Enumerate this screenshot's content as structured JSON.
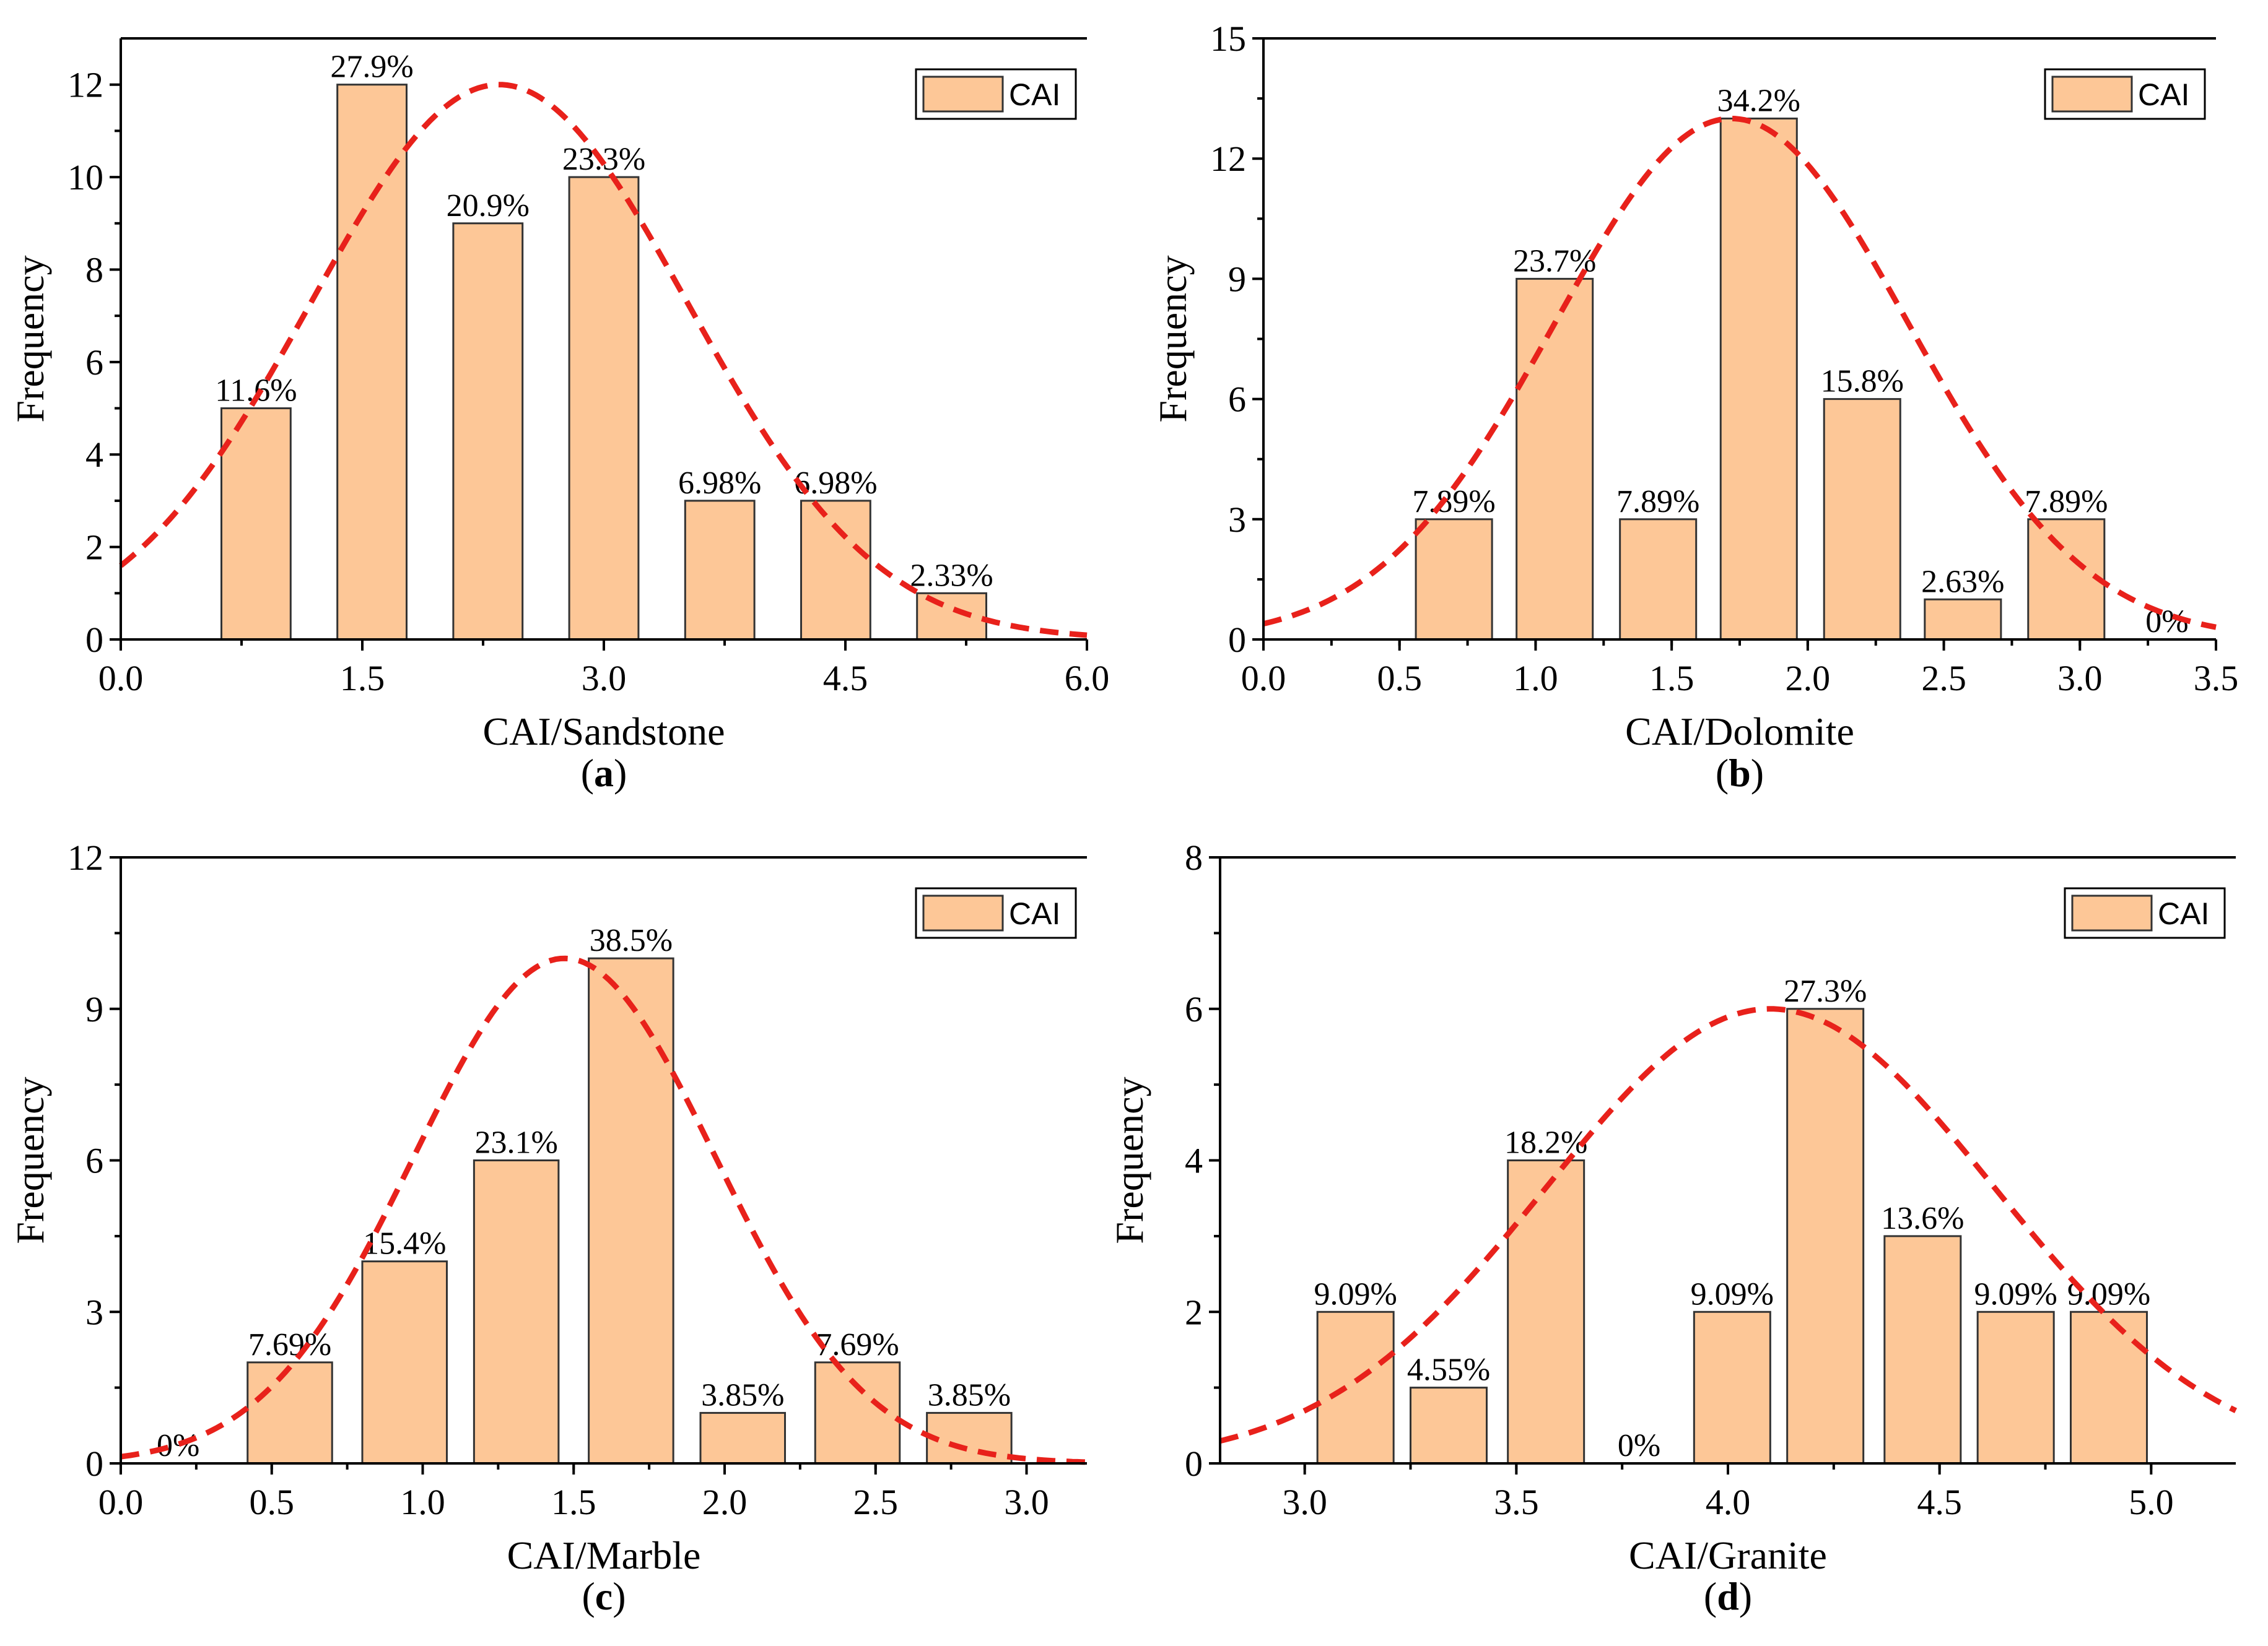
{
  "chart_data": [
    {
      "type": "bar",
      "panel": "a",
      "caption": {
        "open": "(",
        "letter": "a",
        "close": ")"
      },
      "xlabel": "CAI/Sandstone",
      "ylabel": "Frequency",
      "xlim": [
        0,
        6
      ],
      "ylim": [
        0,
        13
      ],
      "xticks": [
        0,
        1.5,
        3,
        4.5,
        6
      ],
      "xtick_labels": [
        "0.0",
        "1.5",
        "3.0",
        "4.5",
        "6.0"
      ],
      "yticks": [
        0,
        2,
        4,
        6,
        8,
        10,
        12
      ],
      "ytick_labels": [
        "0",
        "2",
        "4",
        "6",
        "8",
        "10",
        "12"
      ],
      "legend": "CAI",
      "legend_position": "top-right",
      "bar_width": 0.43,
      "bars": [
        {
          "x": 0.84,
          "value": 5,
          "label": "11.6%"
        },
        {
          "x": 1.56,
          "value": 12,
          "label": "27.9%"
        },
        {
          "x": 2.28,
          "value": 9,
          "label": "20.9%"
        },
        {
          "x": 3.0,
          "value": 10,
          "label": "23.3%"
        },
        {
          "x": 3.72,
          "value": 3,
          "label": "6.98%"
        },
        {
          "x": 4.44,
          "value": 3,
          "label": "6.98%"
        },
        {
          "x": 5.16,
          "value": 1,
          "label": "2.33%"
        }
      ],
      "fit": {
        "type": "normal",
        "peak": 12,
        "mean": 2.35,
        "sd": 1.17
      },
      "fit_color": "#E8211B",
      "bar_color": "#FDC797"
    },
    {
      "type": "bar",
      "panel": "b",
      "caption": {
        "open": "(",
        "letter": "b",
        "close": ")"
      },
      "xlabel": "CAI/Dolomite",
      "ylabel": "Frequency",
      "xlim": [
        0,
        3.5
      ],
      "ylim": [
        0,
        15
      ],
      "xticks": [
        0,
        0.5,
        1,
        1.5,
        2,
        2.5,
        3,
        3.5
      ],
      "xtick_labels": [
        "0.0",
        "0.5",
        "1.0",
        "1.5",
        "2.0",
        "2.5",
        "3.0",
        "3.5"
      ],
      "yticks": [
        0,
        3,
        6,
        9,
        12,
        15
      ],
      "ytick_labels": [
        "0",
        "3",
        "6",
        "9",
        "12",
        "15"
      ],
      "legend": "CAI",
      "legend_position": "top-right",
      "bar_width": 0.28,
      "bars": [
        {
          "x": 0.7,
          "value": 3,
          "label": "7.89%"
        },
        {
          "x": 1.07,
          "value": 9,
          "label": "23.7%"
        },
        {
          "x": 1.45,
          "value": 3,
          "label": "7.89%"
        },
        {
          "x": 1.82,
          "value": 13,
          "label": "34.2%"
        },
        {
          "x": 2.2,
          "value": 6,
          "label": "15.8%"
        },
        {
          "x": 2.57,
          "value": 1,
          "label": "2.63%"
        },
        {
          "x": 2.95,
          "value": 3,
          "label": "7.89%"
        },
        {
          "x": 3.32,
          "value": 0,
          "label": "0%"
        }
      ],
      "fit": {
        "type": "normal",
        "peak": 13,
        "mean": 1.72,
        "sd": 0.65
      },
      "fit_color": "#E8211B",
      "bar_color": "#FDC797"
    },
    {
      "type": "bar",
      "panel": "c",
      "caption": {
        "open": "(",
        "letter": "c",
        "close": ")"
      },
      "xlabel": "CAI/Marble",
      "ylabel": "Frequency",
      "xlim": [
        0,
        3.2
      ],
      "ylim": [
        0,
        12
      ],
      "xticks": [
        0,
        0.5,
        1,
        1.5,
        2,
        2.5,
        3
      ],
      "xtick_labels": [
        "0.0",
        "0.5",
        "1.0",
        "1.5",
        "2.0",
        "2.5",
        "3.0"
      ],
      "yticks": [
        0,
        3,
        6,
        9,
        12
      ],
      "ytick_labels": [
        "0",
        "3",
        "6",
        "9",
        "12"
      ],
      "legend": "CAI",
      "legend_position": "top-right",
      "bar_width": 0.28,
      "bars": [
        {
          "x": 0.19,
          "value": 0,
          "label": "0%"
        },
        {
          "x": 0.56,
          "value": 2,
          "label": "7.69%"
        },
        {
          "x": 0.94,
          "value": 4,
          "label": "15.4%"
        },
        {
          "x": 1.31,
          "value": 6,
          "label": "23.1%"
        },
        {
          "x": 1.69,
          "value": 10,
          "label": "38.5%"
        },
        {
          "x": 2.06,
          "value": 1,
          "label": "3.85%"
        },
        {
          "x": 2.44,
          "value": 2,
          "label": "7.69%"
        },
        {
          "x": 2.81,
          "value": 1,
          "label": "3.85%"
        }
      ],
      "fit": {
        "type": "normal",
        "peak": 10,
        "mean": 1.47,
        "sd": 0.5
      },
      "fit_color": "#E8211B",
      "bar_color": "#FDC797"
    },
    {
      "type": "bar",
      "panel": "d",
      "caption": {
        "open": "(",
        "letter": "d",
        "close": ")"
      },
      "xlabel": "CAI/Granite",
      "ylabel": "Frequency",
      "xlim": [
        2.8,
        5.2
      ],
      "ylim": [
        0,
        8
      ],
      "xticks": [
        3,
        3.5,
        4,
        4.5,
        5
      ],
      "xtick_labels": [
        "3.0",
        "3.5",
        "4.0",
        "4.5",
        "5.0"
      ],
      "yticks": [
        0,
        2,
        4,
        6,
        8
      ],
      "ytick_labels": [
        "0",
        "2",
        "4",
        "6",
        "8"
      ],
      "legend": "CAI",
      "legend_position": "top-right",
      "bar_width": 0.18,
      "bars": [
        {
          "x": 3.12,
          "value": 2,
          "label": "9.09%"
        },
        {
          "x": 3.34,
          "value": 1,
          "label": "4.55%"
        },
        {
          "x": 3.57,
          "value": 4,
          "label": "18.2%"
        },
        {
          "x": 3.79,
          "value": 0,
          "label": "0%"
        },
        {
          "x": 4.01,
          "value": 2,
          "label": "9.09%"
        },
        {
          "x": 4.23,
          "value": 6,
          "label": "27.3%"
        },
        {
          "x": 4.46,
          "value": 3,
          "label": "13.6%"
        },
        {
          "x": 4.68,
          "value": 2,
          "label": "9.09%"
        },
        {
          "x": 4.9,
          "value": 2,
          "label": "9.09%"
        }
      ],
      "fit": {
        "type": "normal",
        "peak": 6,
        "mean": 4.1,
        "sd": 0.53
      },
      "fit_color": "#E8211B",
      "bar_color": "#FDC797"
    }
  ]
}
